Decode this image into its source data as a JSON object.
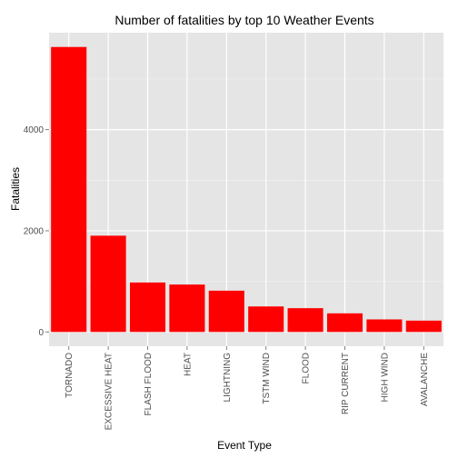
{
  "chart_data": {
    "type": "bar",
    "title": "Number of fatalities by top 10 Weather Events",
    "xlabel": "Event Type",
    "ylabel": "Fatalities",
    "categories": [
      "TORNADO",
      "EXCESSIVE HEAT",
      "FLASH FLOOD",
      "HEAT",
      "LIGHTNING",
      "TSTM WIND",
      "FLOOD",
      "RIP CURRENT",
      "HIGH WIND",
      "AVALANCHE"
    ],
    "values": [
      5633,
      1903,
      978,
      937,
      816,
      504,
      470,
      368,
      248,
      224
    ],
    "y_ticks": [
      0,
      2000,
      4000
    ],
    "ylim": [
      -282,
      5915
    ],
    "grid": true,
    "colors": {
      "bar": "#ff0000",
      "panel": "#e5e5e5",
      "grid_major": "#ffffff",
      "grid_minor": "#f2f2f2",
      "tick_text": "#4d4d4d",
      "tick_mark": "#7f7f7f"
    }
  }
}
